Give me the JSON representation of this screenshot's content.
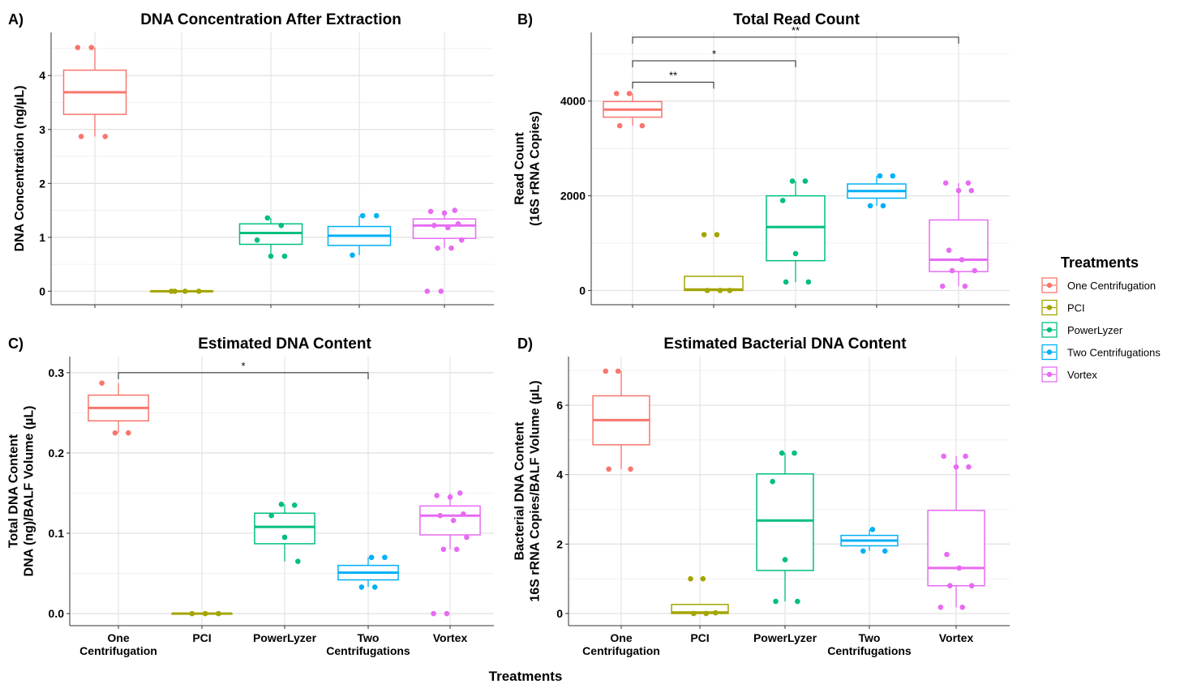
{
  "figure": {
    "xlabel": "Treatments",
    "legend": {
      "title": "Treatments",
      "position": "right",
      "entries": [
        {
          "label": "One Centrifugation",
          "color": "#F8766D"
        },
        {
          "label": "PCI",
          "color": "#A3A500"
        },
        {
          "label": "PowerLyzer",
          "color": "#00BF7D"
        },
        {
          "label": "Two Centrifugations",
          "color": "#00B0F6"
        },
        {
          "label": "Vortex",
          "color": "#E76BF3"
        }
      ]
    }
  },
  "chart_data": [
    {
      "type": "box",
      "panel": "A)",
      "title": "DNA Concentration After Extraction",
      "ylabel": [
        "DNA Concentration (ng/µL)"
      ],
      "ylim": [
        -0.25,
        4.8
      ],
      "yticks": [
        0,
        1,
        2,
        3,
        4
      ],
      "grid": true,
      "show_x_labels": false,
      "categories": [
        "One Centrifugation",
        "PCI",
        "PowerLyzer",
        "Two Centrifugations",
        "Vortex"
      ],
      "boxes": [
        {
          "q1": 3.28,
          "median": 3.69,
          "q3": 4.1,
          "lower": 2.87,
          "upper": 4.52,
          "points": [
            4.52,
            4.52,
            2.87,
            2.87
          ]
        },
        {
          "q1": 0.0,
          "median": 0.0,
          "q3": 0.0,
          "lower": 0.0,
          "upper": 0.0,
          "points": [
            0,
            0,
            0,
            0
          ]
        },
        {
          "q1": 0.87,
          "median": 1.08,
          "q3": 1.25,
          "lower": 0.65,
          "upper": 1.36,
          "points": [
            1.36,
            1.22,
            0.95,
            0.65,
            0.65
          ]
        },
        {
          "q1": 0.85,
          "median": 1.03,
          "q3": 1.2,
          "lower": 0.67,
          "upper": 1.4,
          "points": [
            1.4,
            1.4,
            0.67
          ]
        },
        {
          "q1": 0.98,
          "median": 1.22,
          "q3": 1.34,
          "lower": 0.8,
          "upper": 1.5,
          "points": [
            1.5,
            1.48,
            1.45,
            1.25,
            1.22,
            1.18,
            0.95,
            0.8,
            0.8,
            0.0,
            0.0
          ]
        }
      ],
      "significance": []
    },
    {
      "type": "box",
      "panel": "B)",
      "title": "Total Read Count",
      "ylabel": [
        "Read Count",
        "(16S rRNA Copies)"
      ],
      "ylim": [
        -300,
        5450
      ],
      "yticks": [
        0,
        2000,
        4000
      ],
      "grid": true,
      "show_x_labels": false,
      "categories": [
        "One Centrifugation",
        "PCI",
        "PowerLyzer",
        "Two Centrifugations",
        "Vortex"
      ],
      "boxes": [
        {
          "q1": 3660,
          "median": 3820,
          "q3": 3990,
          "lower": 3480,
          "upper": 4160,
          "points": [
            4160,
            4160,
            3480,
            3480
          ]
        },
        {
          "q1": 0,
          "median": 20,
          "q3": 300,
          "lower": 0,
          "upper": 300,
          "points": [
            1180,
            1180,
            0,
            0,
            0
          ]
        },
        {
          "q1": 630,
          "median": 1340,
          "q3": 2000,
          "lower": 180,
          "upper": 2310,
          "points": [
            2310,
            2310,
            1900,
            780,
            180,
            180
          ]
        },
        {
          "q1": 1950,
          "median": 2100,
          "q3": 2250,
          "lower": 1790,
          "upper": 2420,
          "points": [
            2420,
            2420,
            1790,
            1790
          ]
        },
        {
          "q1": 400,
          "median": 650,
          "q3": 1490,
          "lower": 90,
          "upper": 2270,
          "points": [
            2270,
            2270,
            2110,
            2110,
            850,
            650,
            420,
            420,
            90,
            90
          ]
        }
      ],
      "significance": [
        {
          "from": 0,
          "to": 1,
          "label": "**",
          "y": 4400
        },
        {
          "from": 0,
          "to": 2,
          "label": "*",
          "y": 4850
        },
        {
          "from": 0,
          "to": 4,
          "label": "**",
          "y": 5350
        }
      ]
    },
    {
      "type": "box",
      "panel": "C)",
      "title": "Estimated DNA Content",
      "ylabel": [
        "Total DNA Content",
        "DNA (ng)/BALF Volume (µL)"
      ],
      "ylim": [
        -0.015,
        0.32
      ],
      "yticks": [
        0.0,
        0.1,
        0.2,
        0.3
      ],
      "ytick_labels": [
        "0.0",
        "0.1",
        "0.2",
        "0.3"
      ],
      "grid": true,
      "show_x_labels": true,
      "categories": [
        "One\nCentrifugation",
        "PCI",
        "PowerLyzer",
        "Two\nCentrifugations",
        "Vortex"
      ],
      "boxes": [
        {
          "q1": 0.24,
          "median": 0.256,
          "q3": 0.272,
          "lower": 0.225,
          "upper": 0.287,
          "points": [
            0.287,
            0.225,
            0.225
          ]
        },
        {
          "q1": 0.0,
          "median": 0.0,
          "q3": 0.0,
          "lower": 0.0,
          "upper": 0.0,
          "points": [
            0,
            0,
            0
          ]
        },
        {
          "q1": 0.087,
          "median": 0.108,
          "q3": 0.125,
          "lower": 0.065,
          "upper": 0.136,
          "points": [
            0.136,
            0.135,
            0.122,
            0.095,
            0.065
          ]
        },
        {
          "q1": 0.042,
          "median": 0.051,
          "q3": 0.06,
          "lower": 0.033,
          "upper": 0.07,
          "points": [
            0.07,
            0.07,
            0.033,
            0.033
          ]
        },
        {
          "q1": 0.098,
          "median": 0.122,
          "q3": 0.134,
          "lower": 0.08,
          "upper": 0.15,
          "points": [
            0.15,
            0.147,
            0.145,
            0.124,
            0.122,
            0.116,
            0.095,
            0.08,
            0.08,
            0.0,
            0.0
          ]
        }
      ],
      "significance": [
        {
          "from": 0,
          "to": 3,
          "label": "*",
          "y": 0.3
        }
      ]
    },
    {
      "type": "box",
      "panel": "D)",
      "title": "Estimated Bacterial DNA Content",
      "ylabel": [
        "Bacterial DNA Content",
        "16S rRNA Copies/BALF Volume (µL)"
      ],
      "ylim": [
        -0.35,
        7.4
      ],
      "yticks": [
        0,
        2,
        4,
        6
      ],
      "grid": true,
      "show_x_labels": true,
      "categories": [
        "One\nCentrifugation",
        "PCI",
        "PowerLyzer",
        "Two\nCentrifugations",
        "Vortex"
      ],
      "boxes": [
        {
          "q1": 4.86,
          "median": 5.57,
          "q3": 6.27,
          "lower": 4.16,
          "upper": 6.98,
          "points": [
            6.98,
            6.98,
            4.16,
            4.16
          ]
        },
        {
          "q1": 0.0,
          "median": 0.03,
          "q3": 0.26,
          "lower": 0.0,
          "upper": 0.26,
          "points": [
            1.0,
            1.0,
            0.02,
            0.0,
            0.0
          ]
        },
        {
          "q1": 1.24,
          "median": 2.68,
          "q3": 4.02,
          "lower": 0.35,
          "upper": 4.62,
          "points": [
            4.62,
            4.62,
            3.8,
            1.55,
            0.35,
            0.35
          ]
        },
        {
          "q1": 1.95,
          "median": 2.1,
          "q3": 2.25,
          "lower": 1.8,
          "upper": 2.42,
          "points": [
            2.42,
            1.8,
            1.8
          ]
        },
        {
          "q1": 0.8,
          "median": 1.31,
          "q3": 2.97,
          "lower": 0.18,
          "upper": 4.53,
          "points": [
            4.53,
            4.53,
            4.22,
            4.22,
            1.7,
            1.31,
            0.8,
            0.8,
            0.18,
            0.18
          ]
        }
      ],
      "significance": []
    }
  ]
}
